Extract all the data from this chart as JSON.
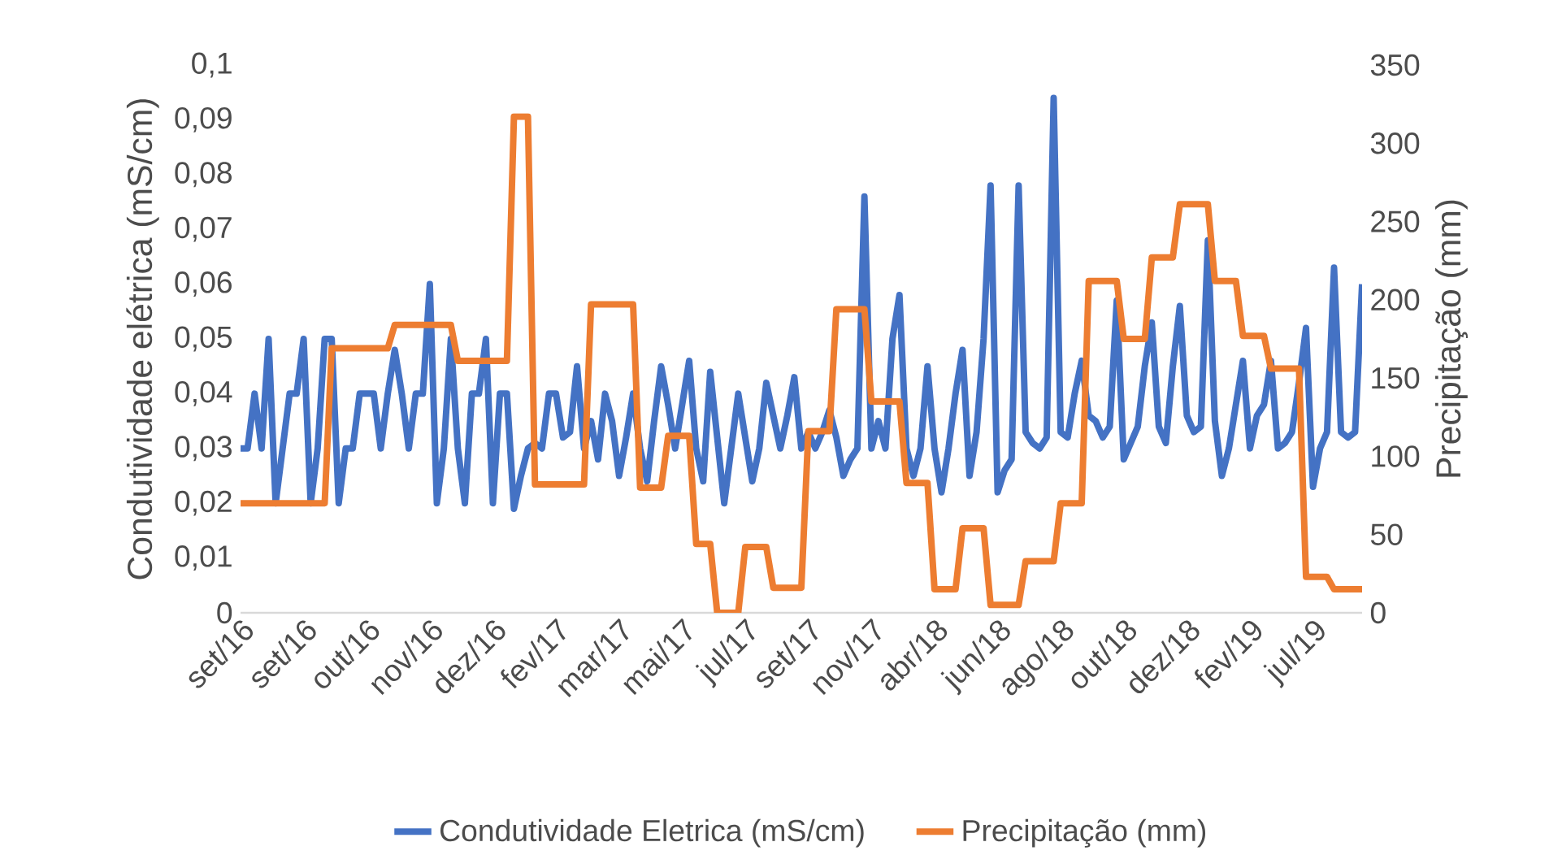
{
  "chart_data": {
    "type": "line",
    "categories": [
      "set/16",
      null,
      null,
      null,
      null,
      null,
      null,
      null,
      null,
      "set/16",
      null,
      null,
      null,
      null,
      null,
      null,
      null,
      null,
      "out/16",
      null,
      null,
      null,
      null,
      null,
      null,
      null,
      null,
      "nov/16",
      null,
      null,
      null,
      null,
      null,
      null,
      null,
      null,
      "dez/16",
      null,
      null,
      null,
      null,
      null,
      null,
      null,
      null,
      "fev/17",
      null,
      null,
      null,
      null,
      null,
      null,
      null,
      null,
      "mar/17",
      null,
      null,
      null,
      null,
      null,
      null,
      null,
      null,
      "mai/17",
      null,
      null,
      null,
      null,
      null,
      null,
      null,
      null,
      "jul/17",
      null,
      null,
      null,
      null,
      null,
      null,
      null,
      null,
      "set/17",
      null,
      null,
      null,
      null,
      null,
      null,
      null,
      null,
      "nov/17",
      null,
      null,
      null,
      null,
      null,
      null,
      null,
      null,
      "abr/18",
      null,
      null,
      null,
      null,
      null,
      null,
      null,
      null,
      "jun/18",
      null,
      null,
      null,
      null,
      null,
      null,
      null,
      null,
      "ago/18",
      null,
      null,
      null,
      null,
      null,
      null,
      null,
      null,
      "out/18",
      null,
      null,
      null,
      null,
      null,
      null,
      null,
      null,
      "dez/18",
      null,
      null,
      null,
      null,
      null,
      null,
      null,
      null,
      "fev/19",
      null,
      null,
      null,
      null,
      null,
      null,
      null,
      null,
      "jul/19",
      null,
      null,
      null,
      null,
      null,
      null,
      null
    ],
    "series": [
      {
        "name": "Condutividade Eletrica (mS/cm)",
        "color": "#4472c4",
        "values": [
          0.03,
          0.03,
          0.04,
          0.03,
          0.05,
          0.02,
          0.03,
          0.04,
          0.04,
          0.05,
          0.02,
          0.03,
          0.05,
          0.05,
          0.02,
          0.03,
          0.03,
          0.04,
          0.04,
          0.04,
          0.03,
          0.04,
          0.048,
          0.04,
          0.03,
          0.04,
          0.04,
          0.06,
          0.02,
          0.03,
          0.05,
          0.03,
          0.02,
          0.04,
          0.04,
          0.05,
          0.02,
          0.04,
          0.04,
          0.019,
          0.025,
          0.03,
          0.031,
          0.03,
          0.04,
          0.04,
          0.032,
          0.033,
          0.045,
          0.03,
          0.035,
          0.028,
          0.04,
          0.035,
          0.025,
          0.032,
          0.04,
          0.03,
          0.024,
          0.035,
          0.045,
          0.038,
          0.03,
          0.038,
          0.046,
          0.03,
          0.024,
          0.044,
          0.032,
          0.02,
          0.03,
          0.04,
          0.032,
          0.024,
          0.03,
          0.042,
          0.036,
          0.03,
          0.036,
          0.043,
          0.03,
          0.033,
          0.03,
          0.033,
          0.037,
          0.032,
          0.025,
          0.028,
          0.03,
          0.076,
          0.03,
          0.035,
          0.03,
          0.05,
          0.058,
          0.03,
          0.025,
          0.03,
          0.045,
          0.03,
          0.022,
          0.03,
          0.04,
          0.048,
          0.025,
          0.033,
          0.05,
          0.078,
          0.022,
          0.026,
          0.028,
          0.078,
          0.033,
          0.031,
          0.03,
          0.032,
          0.094,
          0.033,
          0.032,
          0.04,
          0.046,
          0.036,
          0.035,
          0.032,
          0.034,
          0.057,
          0.028,
          0.031,
          0.034,
          0.045,
          0.053,
          0.034,
          0.031,
          0.045,
          0.056,
          0.036,
          0.033,
          0.034,
          0.068,
          0.035,
          0.025,
          0.03,
          0.038,
          0.046,
          0.03,
          0.036,
          0.038,
          0.046,
          0.03,
          0.031,
          0.033,
          0.042,
          0.052,
          0.023,
          0.03,
          0.033,
          0.063,
          0.033,
          0.032,
          0.033,
          0.06
        ]
      },
      {
        "name": "Precipitação (mm)",
        "color": "#ed7d31",
        "axis": "y2",
        "values": [
          70,
          70,
          70,
          70,
          70,
          70,
          70,
          70,
          70,
          70,
          70,
          70,
          70,
          169,
          169,
          169,
          169,
          169,
          169,
          169,
          169,
          169,
          184,
          184,
          184,
          184,
          184,
          184,
          184,
          184,
          184,
          161,
          161,
          161,
          161,
          161,
          161,
          161,
          161,
          317,
          317,
          317,
          82,
          82,
          82,
          82,
          82,
          82,
          82,
          82,
          197,
          197,
          197,
          197,
          197,
          197,
          197,
          80,
          80,
          80,
          80,
          113,
          113,
          113,
          113,
          44,
          44,
          44,
          0,
          0,
          0,
          0,
          42,
          42,
          42,
          42,
          16,
          16,
          16,
          16,
          16,
          116,
          116,
          116,
          116,
          194,
          194,
          194,
          194,
          194,
          135,
          135,
          135,
          135,
          135,
          83,
          83,
          83,
          83,
          15,
          15,
          15,
          15,
          54,
          54,
          54,
          54,
          5,
          5,
          5,
          5,
          5,
          33,
          33,
          33,
          33,
          33,
          70,
          70,
          70,
          70,
          212,
          212,
          212,
          212,
          212,
          175,
          175,
          175,
          175,
          227,
          227,
          227,
          227,
          261,
          261,
          261,
          261,
          261,
          212,
          212,
          212,
          212,
          177,
          177,
          177,
          177,
          156,
          156,
          156,
          156,
          156,
          23,
          23,
          23,
          23,
          15,
          15,
          15,
          15,
          15
        ]
      }
    ],
    "ylabel": "Condutividade elétrica (mS/cm)",
    "y2label": "Precipitação (mm)",
    "ylim": [
      0,
      0.1
    ],
    "yticks": [
      0,
      {
        "value": 0.01,
        "label": "0,01"
      },
      {
        "value": 0.02,
        "label": "0,02"
      },
      {
        "value": 0.03,
        "label": "0,03"
      },
      {
        "value": 0.04,
        "label": "0,04"
      },
      {
        "value": 0.05,
        "label": "0,05"
      },
      {
        "value": 0.06,
        "label": "0,06"
      },
      {
        "value": 0.07,
        "label": "0,07"
      },
      {
        "value": 0.08,
        "label": "0,08"
      },
      {
        "value": 0.09,
        "label": "0,09"
      },
      {
        "value": 0.1,
        "label": "0,1"
      }
    ],
    "y2lim": [
      0,
      350
    ],
    "y2ticks": [
      0,
      50,
      100,
      150,
      200,
      250,
      300,
      350
    ],
    "grid": false,
    "legend": "bottom"
  }
}
